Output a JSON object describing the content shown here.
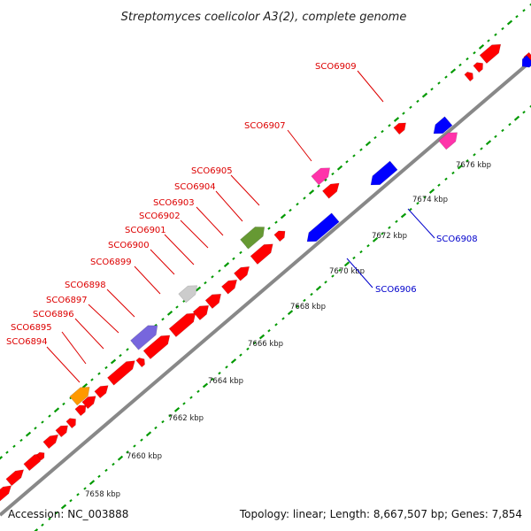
{
  "title": "Streptomyces coelicolor A3(2), complete genome",
  "footer": {
    "accession": "Accession: NC_003888",
    "summary": "Topology: linear; Length: 8,667,507 bp; Genes: 7,854"
  },
  "colors": {
    "forward": "#ff0000",
    "reverse": "#0000ff",
    "label_forward": "#dd0000",
    "label_reverse": "#0000cc",
    "backbone": "#888888",
    "ruler": "#009900"
  },
  "ticks": [
    {
      "label": "7658 kbp"
    },
    {
      "label": "7660 kbp"
    },
    {
      "label": "7662 kbp"
    },
    {
      "label": "7664 kbp"
    },
    {
      "label": "7666 kbp"
    },
    {
      "label": "7668 kbp"
    },
    {
      "label": "7670 kbp"
    },
    {
      "label": "7672 kbp"
    },
    {
      "label": "7674 kbp"
    },
    {
      "label": "7676 kbp"
    }
  ],
  "labels": [
    {
      "id": "SCO6894",
      "text": "SCO6894",
      "strand": "forward"
    },
    {
      "id": "SCO6895",
      "text": "SCO6895",
      "strand": "forward"
    },
    {
      "id": "SCO6896",
      "text": "SCO6896",
      "strand": "forward"
    },
    {
      "id": "SCO6897",
      "text": "SCO6897",
      "strand": "forward"
    },
    {
      "id": "SCO6898",
      "text": "SCO6898",
      "strand": "forward"
    },
    {
      "id": "SCO6899",
      "text": "SCO6899",
      "strand": "forward"
    },
    {
      "id": "SCO6900",
      "text": "SCO6900",
      "strand": "forward"
    },
    {
      "id": "SCO6901",
      "text": "SCO6901",
      "strand": "forward"
    },
    {
      "id": "SCO6902",
      "text": "SCO6902",
      "strand": "forward"
    },
    {
      "id": "SCO6903",
      "text": "SCO6903",
      "strand": "forward"
    },
    {
      "id": "SCO6904",
      "text": "SCO6904",
      "strand": "forward"
    },
    {
      "id": "SCO6905",
      "text": "SCO6905",
      "strand": "forward"
    },
    {
      "id": "SCO6907",
      "text": "SCO6907",
      "strand": "forward"
    },
    {
      "id": "SCO6909",
      "text": "SCO6909",
      "strand": "forward"
    },
    {
      "id": "SCO6906",
      "text": "SCO6906",
      "strand": "reverse"
    },
    {
      "id": "SCO6908",
      "text": "SCO6908",
      "strand": "reverse"
    }
  ],
  "features": [
    {
      "color": "#ff0000"
    },
    {
      "color": "#ff0000"
    },
    {
      "color": "#ff0000"
    },
    {
      "color": "#ff0000"
    },
    {
      "color": "#ff0000"
    },
    {
      "color": "#ff0000"
    },
    {
      "color": "#ff0000"
    },
    {
      "color": "#ff0000"
    },
    {
      "color": "#ff0000"
    },
    {
      "color": "#ff0000"
    },
    {
      "color": "#ff0000"
    },
    {
      "color": "#ff0000"
    },
    {
      "color": "#ff0000"
    },
    {
      "color": "#ff0000"
    },
    {
      "color": "#ff0000"
    },
    {
      "color": "#ff0000"
    },
    {
      "color": "#ff0000"
    },
    {
      "color": "#ff0000"
    },
    {
      "color": "#ff0000"
    },
    {
      "color": "#ff0000"
    },
    {
      "color": "#ff0000"
    },
    {
      "color": "#ff0000"
    },
    {
      "color": "#ff0000"
    },
    {
      "color": "#ff0000"
    },
    {
      "color": "#ff0000"
    },
    {
      "color": "#ff0000"
    },
    {
      "color": "#ff9900"
    },
    {
      "color": "#7766dd"
    },
    {
      "color": "#cccccc"
    },
    {
      "color": "#669933"
    },
    {
      "color": "#ff33aa"
    },
    {
      "color": "#ff33aa"
    },
    {
      "color": "#0000ff"
    },
    {
      "color": "#0000ff"
    },
    {
      "color": "#0000ff"
    },
    {
      "color": "#0000ff"
    }
  ]
}
